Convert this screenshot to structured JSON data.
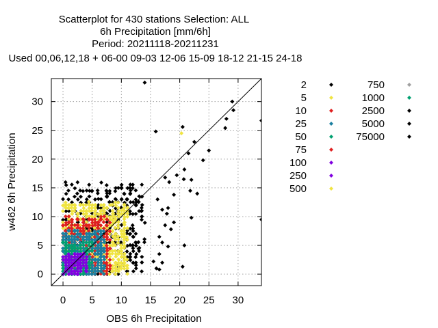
{
  "chart_data": {
    "type": "scatter",
    "title_lines": [
      "Scatterplot for  430 stations Selection: ALL",
      "6h Precipitation [mm/6h]",
      "Period: 20211118-20211231",
      "Used  00,06,12,18  + 06-00 09-03 12-06 15-09 18-12 21-15 24-18"
    ],
    "xlabel": "OBS 6h Precipitation",
    "ylabel": "w462 6h Precipitation",
    "xlim": [
      -2,
      34
    ],
    "ylim": [
      -2,
      34
    ],
    "xticks": [
      0,
      5,
      10,
      15,
      20,
      25,
      30
    ],
    "yticks": [
      0,
      5,
      10,
      15,
      20,
      25,
      30
    ],
    "grid": true,
    "diagonal": true,
    "legend_placement": "right",
    "legend": [
      {
        "label": "2",
        "color": "#000000"
      },
      {
        "label": "5",
        "color": "#f0e442"
      },
      {
        "label": "10",
        "color": "#e02020"
      },
      {
        "label": "25",
        "color": "#1a7fa0"
      },
      {
        "label": "50",
        "color": "#00a070"
      },
      {
        "label": "75",
        "color": "#e02020"
      },
      {
        "label": "100",
        "color": "#8000e0"
      },
      {
        "label": "250",
        "color": "#8000e0"
      },
      {
        "label": "500",
        "color": "#f0e442"
      },
      {
        "label": "750",
        "color": "#a0a0a0"
      },
      {
        "label": "1000",
        "color": "#00a070"
      },
      {
        "label": "2500",
        "color": "#000000"
      },
      {
        "label": "5000",
        "color": "#000000"
      },
      {
        "label": "75000",
        "color": "#000000"
      }
    ],
    "outlier_points": [
      {
        "x": 14.0,
        "y": 33.3
      },
      {
        "x": 29.0,
        "y": 30.0
      },
      {
        "x": 29.2,
        "y": 28.5
      },
      {
        "x": 34.0,
        "y": 26.7
      },
      {
        "x": 28.0,
        "y": 27.0
      },
      {
        "x": 27.8,
        "y": 25.4
      },
      {
        "x": 20.5,
        "y": 25.6
      },
      {
        "x": 15.9,
        "y": 24.8
      },
      {
        "x": 22.5,
        "y": 23.0
      },
      {
        "x": 25.0,
        "y": 21.5
      },
      {
        "x": 21.5,
        "y": 21.0
      },
      {
        "x": 24.0,
        "y": 19.8
      },
      {
        "x": 20.8,
        "y": 18.2
      },
      {
        "x": 19.5,
        "y": 17.2
      },
      {
        "x": 20.7,
        "y": 16.5
      },
      {
        "x": 22.0,
        "y": 16.4
      },
      {
        "x": 21.8,
        "y": 14.5
      },
      {
        "x": 19.0,
        "y": 13.8
      },
      {
        "x": 34.0,
        "y": 9.5
      },
      {
        "x": 22.0,
        "y": 9.8
      },
      {
        "x": 20.8,
        "y": 5.0
      },
      {
        "x": 20.5,
        "y": 1.3
      },
      {
        "x": 16.5,
        "y": 0.8
      },
      {
        "x": 23.0,
        "y": 14.0
      },
      {
        "x": 17.5,
        "y": 16.8
      },
      {
        "x": 18.2,
        "y": 16.0
      },
      {
        "x": 16.2,
        "y": 13.0
      },
      {
        "x": 17.0,
        "y": 11.2
      },
      {
        "x": 18.0,
        "y": 11.5
      },
      {
        "x": 17.8,
        "y": 10.5
      },
      {
        "x": 19.0,
        "y": 9.0
      },
      {
        "x": 17.5,
        "y": 8.5
      },
      {
        "x": 18.5,
        "y": 7.8
      },
      {
        "x": 16.5,
        "y": 6.5
      },
      {
        "x": 17.0,
        "y": 5.5
      },
      {
        "x": 18.0,
        "y": 4.8
      },
      {
        "x": 16.5,
        "y": 3.5
      },
      {
        "x": 15.5,
        "y": 2.2
      },
      {
        "x": 17.0,
        "y": 2.0
      },
      {
        "x": 16.0,
        "y": 1.0
      },
      {
        "x": 20.3,
        "y": 24.5
      }
    ]
  }
}
